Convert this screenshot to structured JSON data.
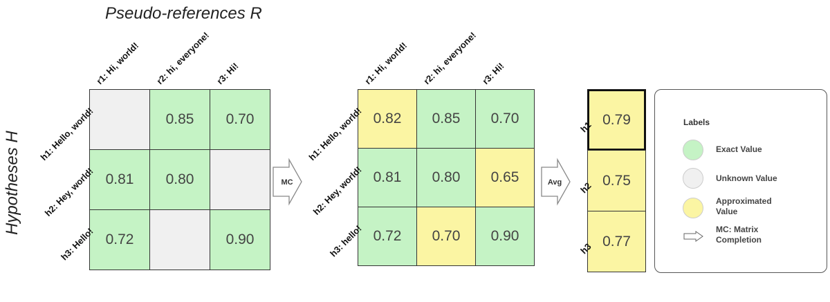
{
  "titles": {
    "references": "Pseudo-references R",
    "hypotheses": "Hypotheses H"
  },
  "matrix_left": {
    "col_labels": [
      "r1: Hi, world!",
      "r2: hi, everyone!",
      "r3: Hi!"
    ],
    "row_labels": [
      "h1: Hello, world!",
      "h2: Hey, world!",
      "h3: Hello!"
    ],
    "cells": [
      [
        {
          "value": "",
          "state": "unknown"
        },
        {
          "value": "0.85",
          "state": "exact"
        },
        {
          "value": "0.70",
          "state": "exact"
        }
      ],
      [
        {
          "value": "0.81",
          "state": "exact"
        },
        {
          "value": "0.80",
          "state": "exact"
        },
        {
          "value": "",
          "state": "unknown"
        }
      ],
      [
        {
          "value": "0.72",
          "state": "exact"
        },
        {
          "value": "",
          "state": "unknown"
        },
        {
          "value": "0.90",
          "state": "exact"
        }
      ]
    ]
  },
  "matrix_mid": {
    "col_labels": [
      "r1: Hi, world!",
      "r2: hi, everyone!",
      "r3: Hi!"
    ],
    "row_labels": [
      "h1: Hello, world!",
      "h2: Hey, world!",
      "h3: hello!"
    ],
    "cells": [
      [
        {
          "value": "0.82",
          "state": "approx"
        },
        {
          "value": "0.85",
          "state": "exact"
        },
        {
          "value": "0.70",
          "state": "exact"
        }
      ],
      [
        {
          "value": "0.81",
          "state": "exact"
        },
        {
          "value": "0.80",
          "state": "exact"
        },
        {
          "value": "0.65",
          "state": "approx"
        }
      ],
      [
        {
          "value": "0.72",
          "state": "exact"
        },
        {
          "value": "0.70",
          "state": "approx"
        },
        {
          "value": "0.90",
          "state": "exact"
        }
      ]
    ]
  },
  "vector_right": {
    "row_labels": [
      "h1",
      "h2",
      "h3"
    ],
    "values": [
      "0.79",
      "0.75",
      "0.77"
    ],
    "highlighted_index": 0
  },
  "arrows": {
    "mc_label": "MC",
    "avg_label": "Avg"
  },
  "legend": {
    "title": "Labels",
    "items": [
      {
        "label": "Exact Value",
        "color": "#c5f3c5"
      },
      {
        "label": "Unknown Value",
        "color": "#f0f0f0"
      },
      {
        "label": "Approximated Value",
        "color": "#fbf5a3"
      }
    ],
    "arrow_item": "MC: Matrix Completion"
  },
  "colors": {
    "exact": "#c5f3c5",
    "unknown": "#f0f0f0",
    "approx": "#fbf5a3"
  }
}
